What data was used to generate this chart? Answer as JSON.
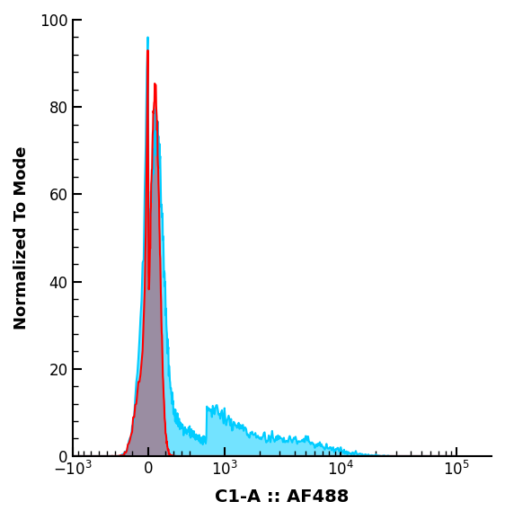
{
  "title": "",
  "xlabel": "C1-A :: AF488",
  "ylabel": "Normalized To Mode",
  "xlim_low": -1000,
  "xlim_high": 200000,
  "ylim": [
    0,
    100
  ],
  "yticks": [
    0,
    20,
    40,
    60,
    80,
    100
  ],
  "background_color": "#ffffff",
  "red_color": "#ff0000",
  "red_fill": "#b06070",
  "cyan_color": "#00ccff",
  "cyan_fill": "#00ccff",
  "red_max": 93,
  "cyan_max": 96,
  "linthresh": 700
}
